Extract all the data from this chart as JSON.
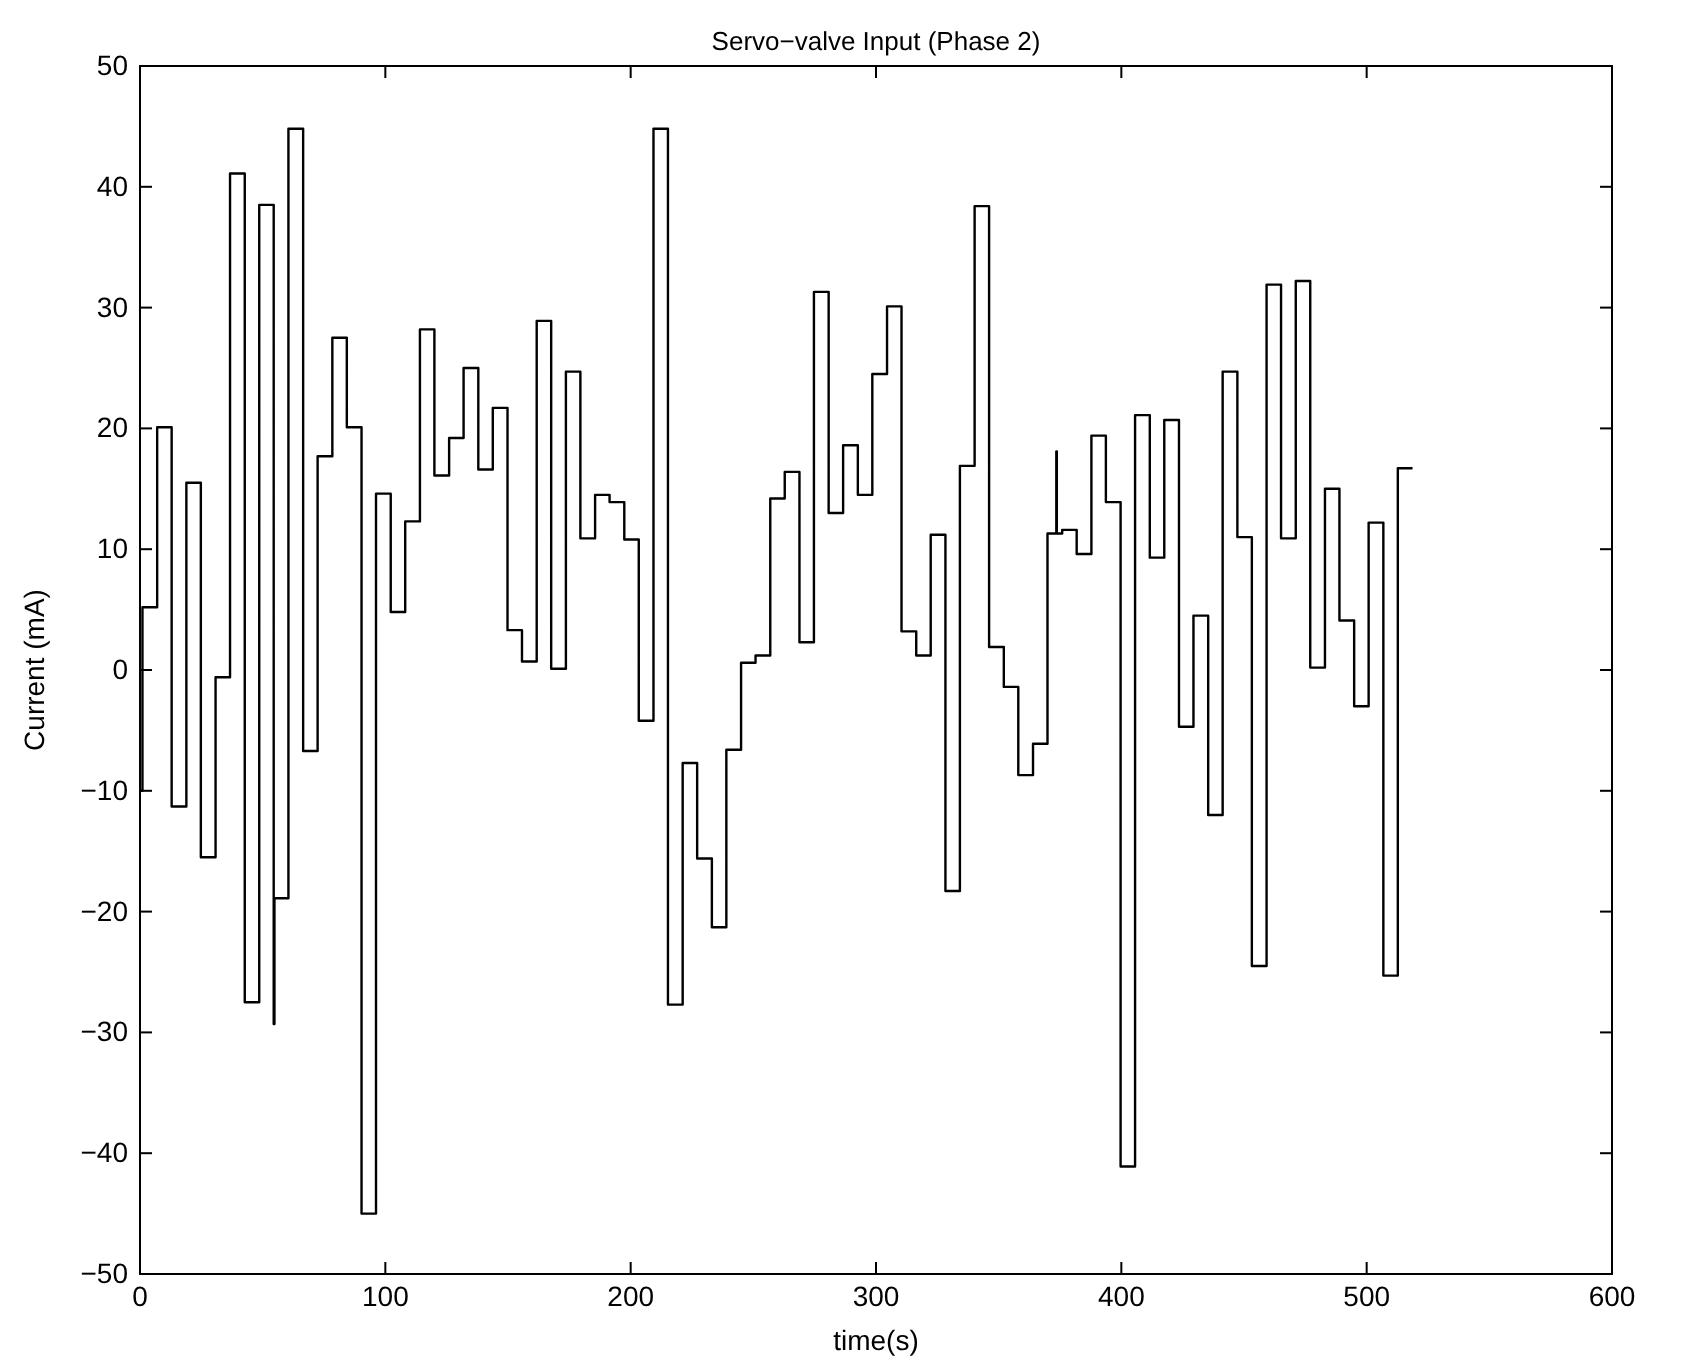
{
  "chart_data": {
    "type": "step",
    "title": "Servo−valve Input (Phase 2)",
    "xlabel": "time(s)",
    "ylabel": "Current (mA)",
    "xlim": [
      0,
      600
    ],
    "xticks": [
      0,
      100,
      200,
      300,
      400,
      500,
      600
    ],
    "ylim": [
      -50,
      50
    ],
    "yticks": [
      -50,
      -40,
      -30,
      -20,
      -10,
      0,
      10,
      20,
      30,
      40,
      50
    ],
    "grid": false,
    "marker": "none",
    "line_style": "solid",
    "series": [
      {
        "color": "#000000",
        "x": [
          0,
          1,
          7,
          12.9,
          18.9,
          24.8,
          30.8,
          36.7,
          42.7,
          48.6,
          54.5,
          54.8,
          60.5,
          66.5,
          72.4,
          78.4,
          84.3,
          90.3,
          96.2,
          102.2,
          108.1,
          114.1,
          120,
          126,
          131.9,
          137.9,
          143.8,
          149.8,
          155.7,
          161.7,
          167.6,
          173.6,
          179.5,
          185.5,
          191.4,
          197.4,
          203.3,
          209.3,
          215.2,
          221.2,
          227.1,
          233.1,
          239,
          245,
          250.9,
          256.9,
          262.8,
          268.8,
          274.7,
          280.7,
          286.6,
          292.6,
          298.5,
          304.5,
          310.4,
          316.4,
          322.3,
          328.3,
          334.2,
          340.2,
          346.1,
          352.1,
          358,
          364,
          369.9,
          373.5,
          373.7,
          375.9,
          381.8,
          387.8,
          393.7,
          399.7,
          405.6,
          411.6,
          417.5,
          423.5,
          429.4,
          435.4,
          441.3,
          447.3,
          453.2,
          459.2,
          465.1,
          471.1,
          477,
          483,
          488.9,
          494.9,
          500.8,
          506.8,
          512.7,
          518.7
        ],
        "values": [
          -10,
          5.2,
          20.1,
          -11.3,
          15.5,
          -15.5,
          -0.6,
          41.1,
          -27.5,
          38.5,
          -29.3,
          -18.9,
          44.8,
          -6.7,
          17.7,
          27.5,
          20.1,
          -45,
          14.6,
          4.8,
          12.3,
          28.2,
          16.1,
          19.2,
          25,
          16.6,
          21.7,
          3.3,
          0.7,
          28.9,
          0.1,
          24.7,
          10.9,
          14.5,
          13.9,
          10.8,
          -4.2,
          44.8,
          -27.7,
          -7.7,
          -15.6,
          -21.3,
          -6.6,
          0.6,
          1.2,
          14.2,
          16.4,
          2.3,
          31.3,
          13,
          18.6,
          14.5,
          24.5,
          30.1,
          3.2,
          1.2,
          11.2,
          -18.3,
          16.9,
          38.4,
          1.9,
          -1.4,
          -8.7,
          -6.1,
          11.3,
          18.1,
          11.3,
          11.6,
          9.6,
          19.4,
          13.9,
          -41.1,
          21.1,
          9.3,
          20.7,
          -4.7,
          4.5,
          -12,
          24.7,
          11,
          -24.5,
          31.9,
          10.9,
          32.2,
          0.2,
          15,
          4.1,
          -3,
          12.2,
          -25.3,
          16.7,
          16.7
        ]
      }
    ]
  }
}
